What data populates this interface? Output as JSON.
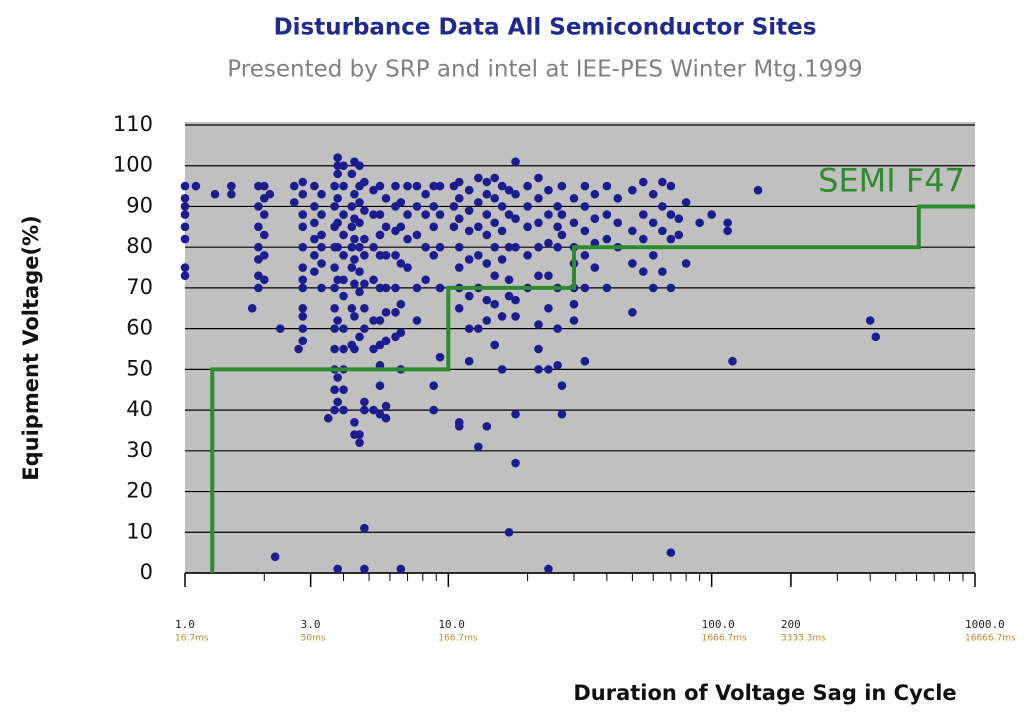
{
  "chart_data": {
    "type": "scatter",
    "title": "Disturbance Data All Semiconductor Sites",
    "subtitle": "Presented by SRP and intel at IEE-PES Winter Mtg.1999",
    "xlabel": "Duration of Voltage Sag in Cycle",
    "ylabel": "Equipment Voltage(%)",
    "log_x": true,
    "grid": true,
    "xlim": [
      1,
      1000
    ],
    "ylim": [
      0,
      110
    ],
    "yticks": [
      0,
      10,
      20,
      30,
      40,
      50,
      60,
      70,
      80,
      90,
      100,
      110
    ],
    "xticks": [
      {
        "value": 1,
        "label": "1.0"
      },
      {
        "value": 3,
        "label": "3.0"
      },
      {
        "value": 10,
        "label": "10.0"
      },
      {
        "value": 100,
        "label": "100.0"
      },
      200,
      {
        "value": 1000,
        "label": "1000.0"
      }
    ],
    "xtick_units": [
      "16.7ms",
      "50ms",
      "166.7ms",
      "1666.7ms",
      "3333.3ms",
      "16666.7ms"
    ],
    "xminor_ticks": [
      2,
      3,
      4,
      5,
      6,
      7,
      8,
      9,
      20,
      30,
      40,
      50,
      60,
      70,
      80,
      90,
      200,
      300,
      400,
      500,
      600,
      700,
      800,
      900
    ],
    "series": [
      {
        "type": "scatter",
        "color": "#1c1c8f",
        "x": [
          1,
          1,
          1,
          1,
          1,
          1,
          1,
          1,
          1.1,
          1.3,
          1.5,
          1.5,
          1.8,
          1.9,
          1.9,
          1.9,
          1.9,
          1.9,
          1.9,
          1.9,
          2,
          2,
          2,
          2,
          2,
          2,
          2.1,
          2.2,
          2.3,
          2.6,
          2.6,
          2.7,
          2.8,
          2.8,
          2.8,
          2.8,
          2.8,
          2.8,
          2.8,
          2.8,
          2.8,
          2.8,
          2.8,
          2.8,
          3.1,
          3.1,
          3.1,
          3.1,
          3.1,
          3.1,
          3.3,
          3.3,
          3.3,
          3.3,
          3.3,
          3.3,
          3.5,
          3.7,
          3.7,
          3.7,
          3.7,
          3.7,
          3.7,
          3.7,
          3.7,
          3.7,
          3.7,
          3.7,
          3.7,
          3.8,
          3.8,
          3.8,
          3.8,
          3.8,
          3.8,
          3.8,
          3.8,
          3.8,
          3.8,
          3.8,
          4,
          4,
          4,
          4,
          4,
          4,
          4,
          4,
          4,
          4,
          4,
          4,
          4.3,
          4.3,
          4.3,
          4.3,
          4.3,
          4.3,
          4.3,
          4.4,
          4.4,
          4.4,
          4.4,
          4.4,
          4.4,
          4.4,
          4.4,
          4.4,
          4.4,
          4.6,
          4.6,
          4.6,
          4.6,
          4.6,
          4.6,
          4.6,
          4.6,
          4.6,
          4.6,
          4.8,
          4.8,
          4.8,
          4.8,
          4.8,
          4.8,
          4.8,
          4.8,
          4.8,
          4.8,
          4.8,
          5.2,
          5.2,
          5.2,
          5.2,
          5.2,
          5.2,
          5.2,
          5.5,
          5.5,
          5.5,
          5.5,
          5.5,
          5.5,
          5.5,
          5.5,
          5.5,
          5.5,
          5.8,
          5.8,
          5.8,
          5.8,
          5.8,
          5.8,
          5.8,
          5.8,
          6.3,
          6.3,
          6.3,
          6.3,
          6.3,
          6.3,
          6.3,
          6.6,
          6.6,
          6.6,
          6.6,
          6.6,
          6.6,
          6.6,
          7,
          7,
          7,
          7,
          7.6,
          7.6,
          7.6,
          7.6,
          7.6,
          8.2,
          8.2,
          8.2,
          8.2,
          8.8,
          8.8,
          8.8,
          8.8,
          8.8,
          8.8,
          9.3,
          9.3,
          9.3,
          9.3,
          9.3,
          10.5,
          10.5,
          10.5,
          11,
          11,
          11,
          11,
          11,
          11,
          11,
          11,
          11,
          12,
          12,
          12,
          12,
          12,
          12,
          12,
          13,
          13,
          13,
          13,
          13,
          13,
          13,
          14,
          14,
          14,
          14,
          14,
          14,
          14,
          14,
          15,
          15,
          15,
          15,
          15,
          15,
          15,
          16,
          16,
          16,
          16,
          16,
          16,
          17,
          17,
          17,
          17,
          17,
          17,
          18,
          18,
          18,
          18,
          18,
          18,
          18,
          18,
          20,
          20,
          20,
          20,
          20,
          22,
          22,
          22,
          22,
          22,
          22,
          22,
          22,
          24,
          24,
          24,
          24,
          24,
          24,
          24,
          26,
          26,
          26,
          26,
          26,
          26,
          27,
          27,
          27,
          27,
          27,
          30,
          30,
          30,
          30,
          30,
          30,
          30,
          33,
          33,
          33,
          33,
          33,
          33,
          36,
          36,
          36,
          36,
          40,
          40,
          40,
          40,
          44,
          44,
          44,
          50,
          50,
          50,
          50,
          55,
          55,
          55,
          55,
          60,
          60,
          60,
          60,
          65,
          65,
          65,
          65,
          70,
          70,
          70,
          70,
          70,
          75,
          75,
          80,
          80,
          90,
          100,
          115,
          115,
          120,
          150,
          400,
          420
        ],
        "values": [
          95,
          92,
          90,
          88,
          85,
          82,
          75,
          73,
          95,
          93,
          95,
          93,
          65,
          95,
          90,
          85,
          80,
          77,
          73,
          70,
          95,
          92,
          88,
          83,
          78,
          72,
          93,
          4,
          60,
          95,
          91,
          55,
          96,
          93,
          88,
          85,
          80,
          75,
          72,
          70,
          65,
          63,
          60,
          57,
          95,
          90,
          86,
          82,
          78,
          74,
          93,
          88,
          83,
          80,
          76,
          70,
          38,
          95,
          90,
          85,
          80,
          75,
          70,
          65,
          60,
          55,
          50,
          45,
          40,
          102,
          100,
          98,
          92,
          86,
          80,
          72,
          62,
          48,
          42,
          1,
          100,
          95,
          88,
          83,
          78,
          72,
          68,
          60,
          55,
          50,
          45,
          40,
          98,
          90,
          85,
          80,
          75,
          65,
          56,
          101,
          93,
          87,
          82,
          77,
          71,
          63,
          55,
          37,
          34,
          100,
          95,
          91,
          86,
          80,
          74,
          69,
          58,
          34,
          32,
          96,
          89,
          82,
          78,
          71,
          65,
          60,
          42,
          40,
          11,
          1,
          94,
          88,
          80,
          72,
          62,
          55,
          40,
          95,
          88,
          83,
          78,
          70,
          62,
          56,
          51,
          46,
          39,
          92,
          85,
          78,
          70,
          64,
          57,
          41,
          38,
          95,
          90,
          84,
          78,
          70,
          64,
          58,
          91,
          85,
          76,
          66,
          59,
          50,
          1,
          95,
          88,
          82,
          75,
          95,
          90,
          83,
          70,
          62,
          93,
          88,
          80,
          72,
          95,
          90,
          85,
          78,
          46,
          40,
          95,
          88,
          80,
          70,
          53,
          95,
          90,
          85,
          96,
          92,
          87,
          80,
          75,
          70,
          65,
          37,
          36,
          94,
          89,
          84,
          77,
          68,
          60,
          52,
          97,
          91,
          85,
          78,
          70,
          60,
          31,
          96,
          93,
          88,
          83,
          76,
          67,
          62,
          36,
          97,
          92,
          86,
          80,
          73,
          66,
          56,
          95,
          90,
          84,
          77,
          63,
          50,
          94,
          88,
          80,
          72,
          68,
          10,
          101,
          93,
          87,
          80,
          67,
          63,
          39,
          27,
          95,
          90,
          85,
          78,
          70,
          97,
          92,
          86,
          80,
          73,
          61,
          55,
          50,
          94,
          88,
          81,
          73,
          65,
          50,
          1,
          90,
          85,
          80,
          70,
          60,
          51,
          95,
          88,
          83,
          46,
          39,
          92,
          86,
          80,
          76,
          70,
          66,
          62,
          95,
          90,
          84,
          78,
          70,
          52,
          93,
          87,
          81,
          75,
          95,
          88,
          82,
          70,
          92,
          86,
          80,
          94,
          84,
          76,
          64,
          96,
          88,
          82,
          74,
          93,
          86,
          78,
          70,
          96,
          90,
          84,
          74,
          95,
          88,
          82,
          70,
          5,
          87,
          83,
          91,
          76,
          86,
          88,
          86,
          84,
          52,
          94,
          62,
          58
        ]
      },
      {
        "type": "line",
        "name": "SEMI F47",
        "color": "#2e8b2e",
        "x": [
          1.27,
          1.27,
          10,
          10,
          30,
          30,
          612,
          612,
          1000
        ],
        "values": [
          0,
          50,
          50,
          70,
          70,
          80,
          80,
          90,
          90
        ]
      }
    ]
  }
}
